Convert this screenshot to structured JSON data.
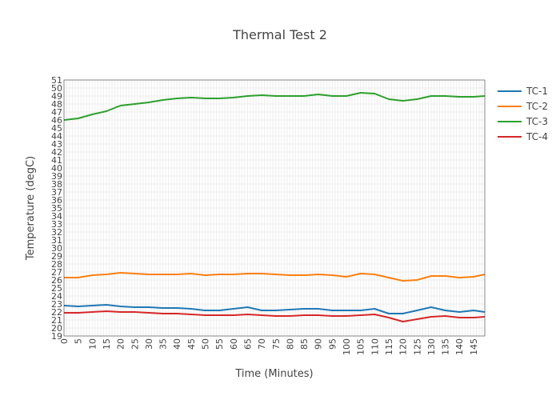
{
  "chart_data": {
    "type": "line",
    "title": "Thermal Test 2",
    "xlabel": "Time (Minutes)",
    "ylabel": "Temperature (degC)",
    "xlim": [
      0,
      149
    ],
    "ylim": [
      19,
      51
    ],
    "xticks": [
      0,
      5,
      10,
      15,
      20,
      25,
      30,
      35,
      40,
      45,
      50,
      55,
      60,
      65,
      70,
      75,
      80,
      85,
      90,
      95,
      100,
      105,
      110,
      115,
      120,
      125,
      130,
      135,
      140,
      145
    ],
    "yticks": [
      19,
      20,
      21,
      22,
      23,
      24,
      25,
      26,
      27,
      28,
      29,
      30,
      31,
      32,
      33,
      34,
      35,
      36,
      37,
      38,
      39,
      40,
      41,
      42,
      43,
      44,
      45,
      46,
      47,
      48,
      49,
      50,
      51
    ],
    "grid": true,
    "legend_position": "top-right",
    "x": [
      0,
      5,
      10,
      15,
      20,
      25,
      30,
      35,
      40,
      45,
      50,
      55,
      60,
      65,
      70,
      75,
      80,
      85,
      90,
      95,
      100,
      105,
      110,
      115,
      120,
      125,
      130,
      135,
      140,
      145,
      149
    ],
    "series": [
      {
        "name": "TC-1",
        "color": "#1f77b4",
        "values": [
          22.8,
          22.7,
          22.8,
          22.9,
          22.7,
          22.6,
          22.6,
          22.5,
          22.5,
          22.4,
          22.2,
          22.2,
          22.4,
          22.6,
          22.2,
          22.2,
          22.3,
          22.4,
          22.4,
          22.2,
          22.2,
          22.2,
          22.4,
          21.8,
          21.8,
          22.2,
          22.6,
          22.2,
          22.0,
          22.2,
          22.0
        ]
      },
      {
        "name": "TC-2",
        "color": "#ff7f0e",
        "values": [
          26.3,
          26.3,
          26.6,
          26.7,
          26.9,
          26.8,
          26.7,
          26.7,
          26.7,
          26.8,
          26.6,
          26.7,
          26.7,
          26.8,
          26.8,
          26.7,
          26.6,
          26.6,
          26.7,
          26.6,
          26.4,
          26.8,
          26.7,
          26.3,
          25.9,
          26.0,
          26.5,
          26.5,
          26.3,
          26.4,
          26.7
        ]
      },
      {
        "name": "TC-3",
        "color": "#2ca02c",
        "values": [
          46.0,
          46.2,
          46.7,
          47.1,
          47.8,
          48.0,
          48.2,
          48.5,
          48.7,
          48.8,
          48.7,
          48.7,
          48.8,
          49.0,
          49.1,
          49.0,
          49.0,
          49.0,
          49.2,
          49.0,
          49.0,
          49.4,
          49.3,
          48.6,
          48.4,
          48.6,
          49.0,
          49.0,
          48.9,
          48.9,
          49.0
        ]
      },
      {
        "name": "TC-4",
        "color": "#d62728",
        "values": [
          21.9,
          21.9,
          22.0,
          22.1,
          22.0,
          22.0,
          21.9,
          21.8,
          21.8,
          21.7,
          21.6,
          21.6,
          21.6,
          21.7,
          21.6,
          21.5,
          21.5,
          21.6,
          21.6,
          21.5,
          21.5,
          21.6,
          21.7,
          21.3,
          20.8,
          21.1,
          21.4,
          21.5,
          21.3,
          21.3,
          21.4
        ]
      }
    ]
  }
}
